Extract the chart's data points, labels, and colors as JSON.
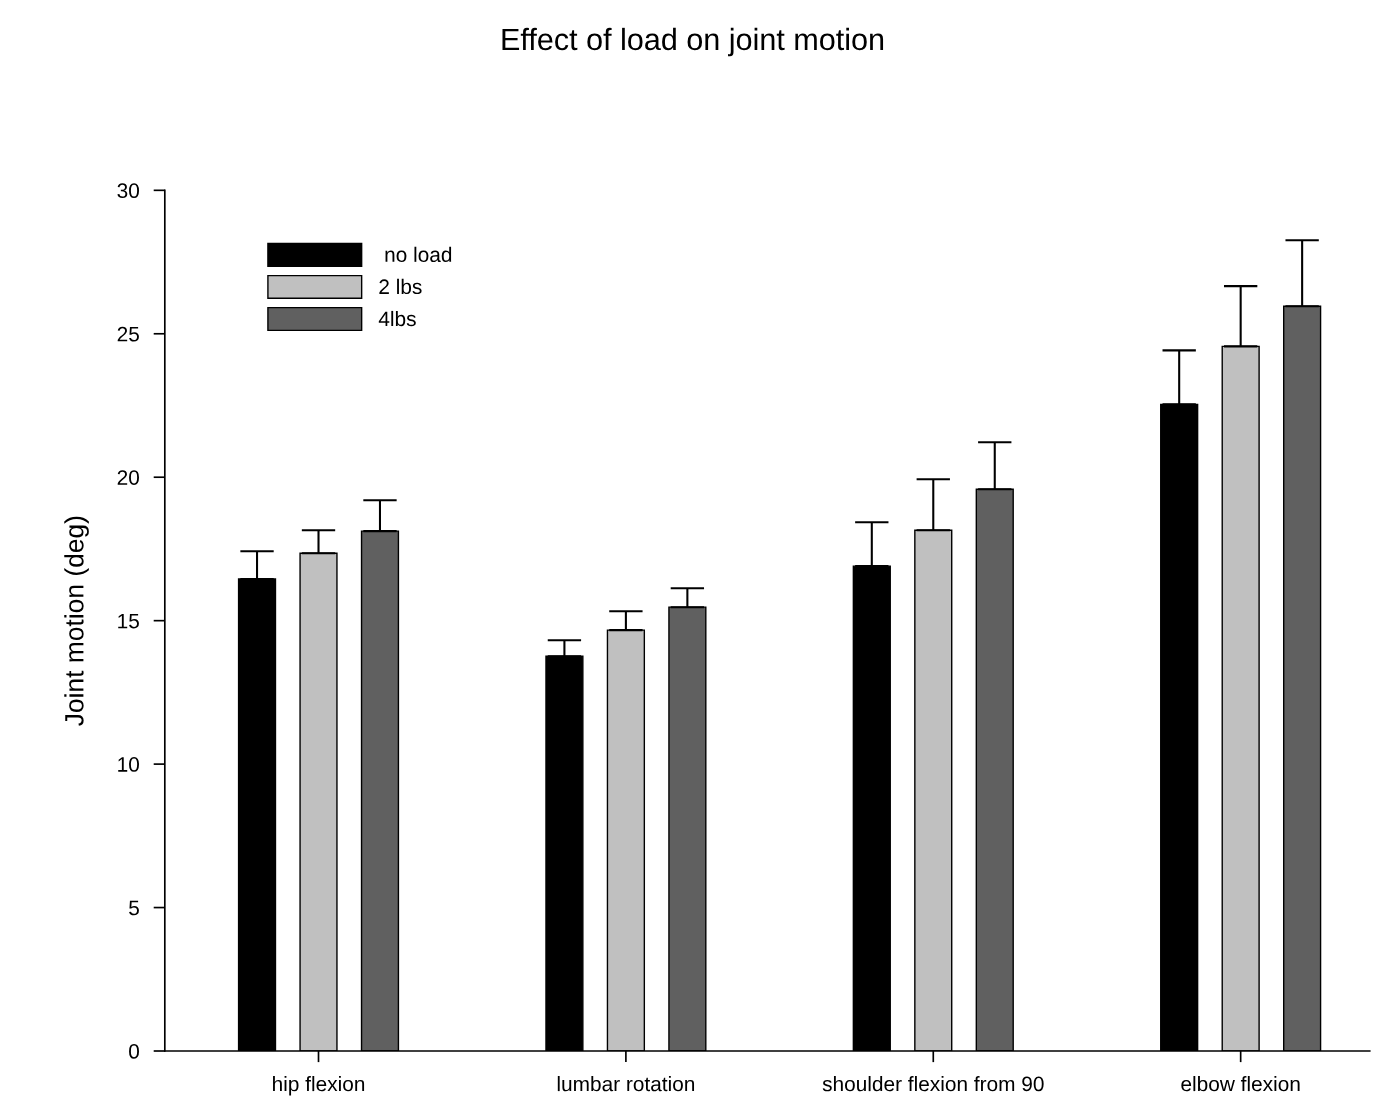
{
  "chart_data": {
    "type": "bar",
    "title": "Effect of load on joint motion",
    "ylabel": "Joint motion (deg)",
    "categories": [
      "hip flexion",
      "lumbar rotation",
      "shoulder flexion from 90",
      "elbow flexion"
    ],
    "series": [
      {
        "name": " no load",
        "color": "#000000",
        "values": [
          16.45,
          13.76,
          16.9,
          22.54
        ],
        "errors": [
          [
            16.45,
            17.42
          ],
          [
            13.76,
            14.32
          ],
          [
            16.9,
            18.43
          ],
          [
            22.54,
            24.42
          ]
        ]
      },
      {
        "name": "2 lbs",
        "color": "#c0c0c0",
        "values": [
          17.35,
          14.67,
          18.15,
          24.56
        ],
        "errors": [
          [
            17.35,
            18.15
          ],
          [
            14.67,
            15.33
          ],
          [
            18.15,
            19.93
          ],
          [
            24.56,
            26.66
          ]
        ]
      },
      {
        "name": "4lbs",
        "color": "#606060",
        "values": [
          18.12,
          15.47,
          19.58,
          25.96
        ],
        "errors": [
          [
            18.12,
            19.2
          ],
          [
            15.47,
            16.13
          ],
          [
            19.58,
            21.22
          ],
          [
            25.96,
            28.26
          ]
        ]
      }
    ],
    "ylim": [
      0,
      30
    ],
    "yticks": [
      0,
      5,
      10,
      15,
      20,
      25,
      30
    ],
    "grid": false,
    "legend": "top left"
  }
}
